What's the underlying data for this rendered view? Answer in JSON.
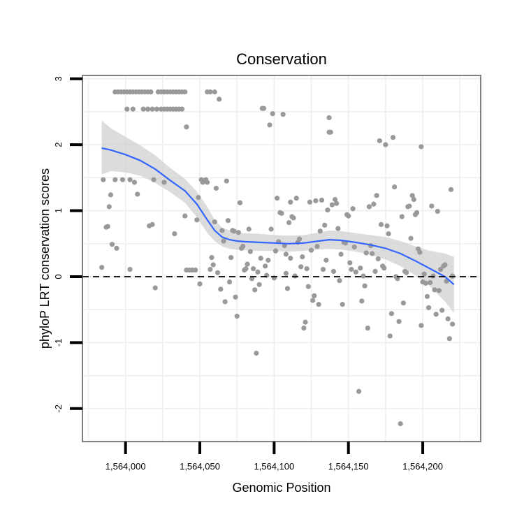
{
  "chart_data": {
    "type": "scatter",
    "title": "Conservation",
    "xlabel": "Genomic Position",
    "ylabel": "phyloP LRT conservation scores",
    "xlim": [
      1563971,
      1564239
    ],
    "ylim": [
      -2.5,
      3.05
    ],
    "xticks": [
      1564000,
      1564050,
      1564100,
      1564150,
      1564200
    ],
    "xtick_labels": [
      "1,564,000",
      "1,564,050",
      "1,564,100",
      "1,564,150",
      "1,564,200"
    ],
    "yticks": [
      -2,
      -1,
      0,
      1,
      2,
      3
    ],
    "ytick_labels": [
      "-2",
      "-1",
      "0",
      "1",
      "2",
      "3"
    ],
    "reference_line": {
      "y": 0,
      "style": "dashed"
    },
    "colors": {
      "points": "#999999",
      "smooth": "#3366ff",
      "band": "#d0d0d0",
      "panel_border": "#7f7f7f",
      "grid": "#f0f0f0",
      "reference": "#000000"
    },
    "points": [
      [
        1563984,
        0.14
      ],
      [
        1563985,
        1.47
      ],
      [
        1563987,
        0.75
      ],
      [
        1563988,
        0.76
      ],
      [
        1563989,
        1.06
      ],
      [
        1563990,
        1.24
      ],
      [
        1563991,
        0.49
      ],
      [
        1563993,
        1.47
      ],
      [
        1563994,
        0.43
      ],
      [
        1563993,
        2.8
      ],
      [
        1563995,
        2.8
      ],
      [
        1563997,
        2.8
      ],
      [
        1563999,
        2.8
      ],
      [
        1564001,
        2.8
      ],
      [
        1564003,
        2.8
      ],
      [
        1563998,
        1.47
      ],
      [
        1564003,
        1.47
      ],
      [
        1564001,
        2.54
      ],
      [
        1564003,
        0.11
      ],
      [
        1564005,
        2.8
      ],
      [
        1564005,
        2.54
      ],
      [
        1564006,
        1.43
      ],
      [
        1564007,
        2.8
      ],
      [
        1564009,
        2.8
      ],
      [
        1564008,
        1.25
      ],
      [
        1564011,
        2.8
      ],
      [
        1564013,
        2.8
      ],
      [
        1564012,
        2.54
      ],
      [
        1564015,
        2.8
      ],
      [
        1564015,
        2.54
      ],
      [
        1564017,
        2.8
      ],
      [
        1564016,
        0.77
      ],
      [
        1564018,
        2.54
      ],
      [
        1564018,
        0.79
      ],
      [
        1564019,
        1.47
      ],
      [
        1564020,
        -0.17
      ],
      [
        1564022,
        2.8
      ],
      [
        1564021,
        2.54
      ],
      [
        1564024,
        2.8
      ],
      [
        1564024,
        2.54
      ],
      [
        1564026,
        2.8
      ],
      [
        1564026,
        2.54
      ],
      [
        1564026,
        1.43
      ],
      [
        1564028,
        2.8
      ],
      [
        1564028,
        2.54
      ],
      [
        1564030,
        2.8
      ],
      [
        1564030,
        2.54
      ],
      [
        1564032,
        2.8
      ],
      [
        1564032,
        2.54
      ],
      [
        1564033,
        0.65
      ],
      [
        1564034,
        2.8
      ],
      [
        1564034,
        2.54
      ],
      [
        1564036,
        2.8
      ],
      [
        1564036,
        2.54
      ],
      [
        1564038,
        2.8
      ],
      [
        1564038,
        2.54
      ],
      [
        1564040,
        2.8
      ],
      [
        1564040,
        0.92
      ],
      [
        1564041,
        2.27
      ],
      [
        1564041,
        0.1
      ],
      [
        1564043,
        0.1
      ],
      [
        1564045,
        0.1
      ],
      [
        1564047,
        0.1
      ],
      [
        1564048,
        0.86
      ],
      [
        1564049,
        1.2
      ],
      [
        1564050,
        -0.11
      ],
      [
        1564051,
        1.47
      ],
      [
        1564052,
        1.43
      ],
      [
        1564054,
        1.47
      ],
      [
        1564055,
        1.43
      ],
      [
        1564055,
        2.8
      ],
      [
        1564057,
        2.8
      ],
      [
        1564057,
        0.11
      ],
      [
        1564058,
        0.29
      ],
      [
        1564059,
        0.18
      ],
      [
        1564060,
        0.83
      ],
      [
        1564060,
        2.8
      ],
      [
        1564061,
        1.34
      ],
      [
        1564062,
        0.06
      ],
      [
        1564063,
        2.69
      ],
      [
        1564064,
        -0.19
      ],
      [
        1564065,
        0.7
      ],
      [
        1564066,
        0.54
      ],
      [
        1564067,
        -0.38
      ],
      [
        1564068,
        1.45
      ],
      [
        1564069,
        0.85
      ],
      [
        1564070,
        -0.08
      ],
      [
        1564071,
        0.29
      ],
      [
        1564072,
        0.7
      ],
      [
        1564073,
        0.69
      ],
      [
        1564074,
        -0.31
      ],
      [
        1564075,
        -0.6
      ],
      [
        1564076,
        0.67
      ],
      [
        1564077,
        1.12
      ],
      [
        1564078,
        0.43
      ],
      [
        1564079,
        0.46
      ],
      [
        1564080,
        0.1
      ],
      [
        1564081,
        0.12
      ],
      [
        1564082,
        0.19
      ],
      [
        1564083,
        0.72
      ],
      [
        1564084,
        0.38
      ],
      [
        1564085,
        -0.03
      ],
      [
        1564086,
        0.12
      ],
      [
        1564087,
        -0.2
      ],
      [
        1564088,
        -1.16
      ],
      [
        1564089,
        0.07
      ],
      [
        1564090,
        -0.12
      ],
      [
        1564091,
        0.28
      ],
      [
        1564092,
        2.55
      ],
      [
        1564093,
        2.55
      ],
      [
        1564094,
        0.16
      ],
      [
        1564095,
        0.02
      ],
      [
        1564096,
        0.25
      ],
      [
        1564097,
        2.3
      ],
      [
        1564098,
        0.72
      ],
      [
        1564099,
        2.47
      ],
      [
        1564100,
        -0.02
      ],
      [
        1564101,
        0.39
      ],
      [
        1564102,
        1.19
      ],
      [
        1564103,
        0.53
      ],
      [
        1564104,
        0.97
      ],
      [
        1564105,
        0.96
      ],
      [
        1564106,
        2.46
      ],
      [
        1564107,
        0.47
      ],
      [
        1564108,
        0.34
      ],
      [
        1564108,
        0.05
      ],
      [
        1564109,
        -0.18
      ],
      [
        1564110,
        0.82
      ],
      [
        1564111,
        1.13
      ],
      [
        1564111,
        0.28
      ],
      [
        1564112,
        0.91
      ],
      [
        1564113,
        0.89
      ],
      [
        1564114,
        0.01
      ],
      [
        1564115,
        1.19
      ],
      [
        1564116,
        0.52
      ],
      [
        1564117,
        0.57
      ],
      [
        1564118,
        0.15
      ],
      [
        1564119,
        0.3
      ],
      [
        1564120,
        -0.78
      ],
      [
        1564121,
        -0.69
      ],
      [
        1564122,
        0.12
      ],
      [
        1564123,
        -0.15
      ],
      [
        1564124,
        1.13
      ],
      [
        1564125,
        0.4
      ],
      [
        1564126,
        -0.36
      ],
      [
        1564127,
        -0.29
      ],
      [
        1564128,
        1.15
      ],
      [
        1564129,
        0.46
      ],
      [
        1564130,
        -0.42
      ],
      [
        1564131,
        0.69
      ],
      [
        1564132,
        1.16
      ],
      [
        1564133,
        0.11
      ],
      [
        1564134,
        0.78
      ],
      [
        1564135,
        0.25
      ],
      [
        1564136,
        1.01
      ],
      [
        1564137,
        2.41
      ],
      [
        1564137,
        2.19
      ],
      [
        1564138,
        2.19
      ],
      [
        1564139,
        1.09
      ],
      [
        1564140,
        0.08
      ],
      [
        1564141,
        1.17
      ],
      [
        1564142,
        1.11
      ],
      [
        1564143,
        0.73
      ],
      [
        1564144,
        -0.06
      ],
      [
        1564145,
        0.34
      ],
      [
        1564146,
        -0.42
      ],
      [
        1564147,
        0.52
      ],
      [
        1564148,
        0.51
      ],
      [
        1564149,
        0.94
      ],
      [
        1564150,
        0.92
      ],
      [
        1564151,
        0.21
      ],
      [
        1564152,
        0.11
      ],
      [
        1564153,
        1.03
      ],
      [
        1564154,
        0.45
      ],
      [
        1564155,
        0.07
      ],
      [
        1564157,
        -1.74
      ],
      [
        1564158,
        0.13
      ],
      [
        1564159,
        -0.37
      ],
      [
        1564160,
        0.01
      ],
      [
        1564161,
        -0.14
      ],
      [
        1564162,
        0.36
      ],
      [
        1564163,
        -0.78
      ],
      [
        1564164,
        1.06
      ],
      [
        1564165,
        0.47
      ],
      [
        1564166,
        0.35
      ],
      [
        1564167,
        1.1
      ],
      [
        1564168,
        0.08
      ],
      [
        1564169,
        1.23
      ],
      [
        1564170,
        0.27
      ],
      [
        1564171,
        2.06
      ],
      [
        1564172,
        0.79
      ],
      [
        1564173,
        0.16
      ],
      [
        1564174,
        0.13
      ],
      [
        1564175,
        2.0
      ],
      [
        1564176,
        0.77
      ],
      [
        1564177,
        0.65
      ],
      [
        1564178,
        -0.9
      ],
      [
        1564179,
        -0.56
      ],
      [
        1564180,
        2.11
      ],
      [
        1564181,
        1.36
      ],
      [
        1564182,
        0.0
      ],
      [
        1564183,
        -0.03
      ],
      [
        1564184,
        -0.68
      ],
      [
        1564185,
        -2.23
      ],
      [
        1564186,
        0.91
      ],
      [
        1564187,
        -0.4
      ],
      [
        1564188,
        0.08
      ],
      [
        1564189,
        0.06
      ],
      [
        1564190,
        1.06
      ],
      [
        1564191,
        1.07
      ],
      [
        1564192,
        0.58
      ],
      [
        1564193,
        1.23
      ],
      [
        1564194,
        1.17
      ],
      [
        1564195,
        0.94
      ],
      [
        1564196,
        0.97
      ],
      [
        1564197,
        0.42
      ],
      [
        1564198,
        0.37
      ],
      [
        1564199,
        1.97
      ],
      [
        1564199,
        -0.74
      ],
      [
        1564200,
        -0.08
      ],
      [
        1564201,
        0.04
      ],
      [
        1564202,
        -0.1
      ],
      [
        1564203,
        -0.3
      ],
      [
        1564204,
        -0.47
      ],
      [
        1564205,
        -0.09
      ],
      [
        1564206,
        1.07
      ],
      [
        1564207,
        0.01
      ],
      [
        1564208,
        -0.2
      ],
      [
        1564209,
        -0.57
      ],
      [
        1564210,
        0.99
      ],
      [
        1564211,
        -0.21
      ],
      [
        1564212,
        0.11
      ],
      [
        1564213,
        -0.51
      ],
      [
        1564214,
        0.16
      ],
      [
        1564215,
        0.18
      ],
      [
        1564216,
        -0.07
      ],
      [
        1564217,
        -0.64
      ],
      [
        1564218,
        -0.94
      ],
      [
        1564219,
        1.32
      ],
      [
        1564220,
        -0.72
      ],
      [
        1564220,
        0.01
      ]
    ],
    "smooth": {
      "x": [
        1563984,
        1563990,
        1564000,
        1564010,
        1564020,
        1564030,
        1564040,
        1564048,
        1564055,
        1564060,
        1564065,
        1564070,
        1564075,
        1564080,
        1564090,
        1564100,
        1564110,
        1564120,
        1564130,
        1564137,
        1564145,
        1564155,
        1564165,
        1564175,
        1564185,
        1564195,
        1564205,
        1564215,
        1564221
      ],
      "y": [
        1.95,
        1.92,
        1.85,
        1.76,
        1.63,
        1.46,
        1.3,
        1.1,
        0.86,
        0.7,
        0.6,
        0.56,
        0.54,
        0.53,
        0.52,
        0.51,
        0.5,
        0.51,
        0.54,
        0.56,
        0.55,
        0.52,
        0.48,
        0.43,
        0.35,
        0.24,
        0.12,
        0.0,
        -0.12
      ],
      "lower": [
        1.55,
        1.6,
        1.58,
        1.53,
        1.42,
        1.28,
        1.12,
        0.9,
        0.66,
        0.54,
        0.46,
        0.42,
        0.41,
        0.4,
        0.39,
        0.39,
        0.38,
        0.39,
        0.41,
        0.42,
        0.41,
        0.38,
        0.33,
        0.26,
        0.16,
        0.02,
        -0.15,
        -0.38,
        -0.55
      ],
      "upper": [
        2.37,
        2.25,
        2.12,
        1.99,
        1.84,
        1.65,
        1.48,
        1.29,
        1.06,
        0.86,
        0.74,
        0.7,
        0.67,
        0.66,
        0.65,
        0.63,
        0.62,
        0.63,
        0.67,
        0.7,
        0.69,
        0.66,
        0.63,
        0.6,
        0.54,
        0.46,
        0.39,
        0.35,
        0.3
      ]
    }
  }
}
